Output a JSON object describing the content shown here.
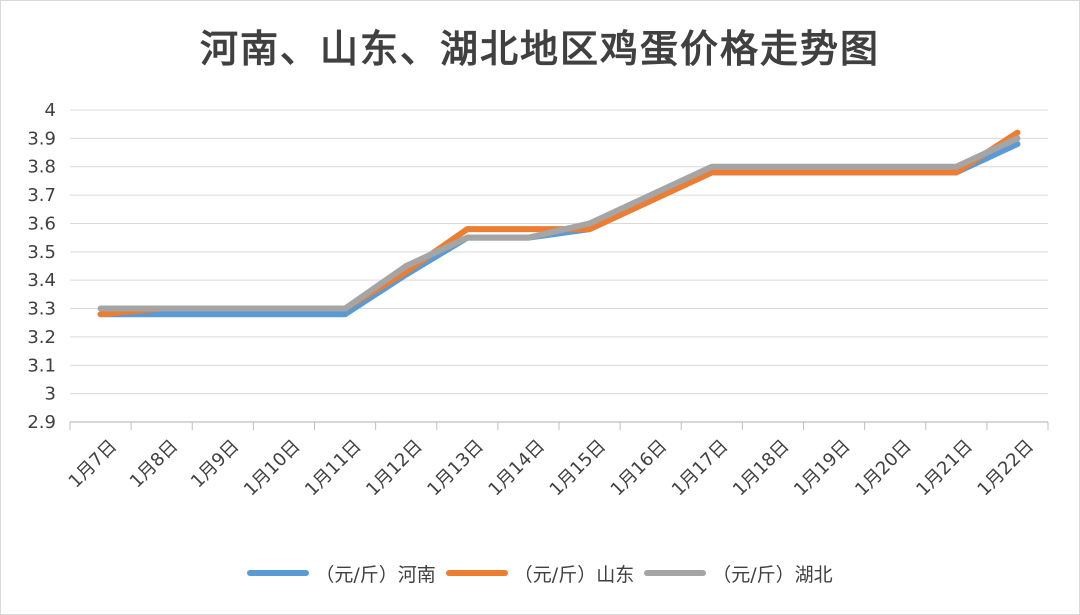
{
  "chart_data": {
    "type": "line",
    "title": "河南、山东、湖北地区鸡蛋价格走势图",
    "categories": [
      "1月7日",
      "1月8日",
      "1月9日",
      "1月10日",
      "1月11日",
      "1月12日",
      "1月13日",
      "1月14日",
      "1月15日",
      "1月16日",
      "1月17日",
      "1月18日",
      "1月19日",
      "1月20日",
      "1月21日",
      "1月22日"
    ],
    "series": [
      {
        "name": "（元/斤）河南",
        "color": "#5b9bd5",
        "values": [
          3.28,
          3.28,
          3.28,
          3.28,
          3.28,
          3.42,
          3.55,
          3.55,
          3.58,
          3.68,
          3.78,
          3.78,
          3.78,
          3.78,
          3.78,
          3.88
        ]
      },
      {
        "name": "（元/斤）山东",
        "color": "#ed7d31",
        "values": [
          3.28,
          3.3,
          3.3,
          3.3,
          3.3,
          3.43,
          3.58,
          3.58,
          3.58,
          3.68,
          3.78,
          3.78,
          3.78,
          3.78,
          3.78,
          3.92
        ]
      },
      {
        "name": "（元/斤）湖北",
        "color": "#a5a5a5",
        "values": [
          3.3,
          3.3,
          3.3,
          3.3,
          3.3,
          3.45,
          3.55,
          3.55,
          3.6,
          3.7,
          3.8,
          3.8,
          3.8,
          3.8,
          3.8,
          3.9
        ]
      }
    ],
    "ylim": [
      2.9,
      4
    ],
    "yticks": [
      "4",
      "3.9",
      "3.8",
      "3.7",
      "3.6",
      "3.5",
      "3.4",
      "3.3",
      "3.2",
      "3.1",
      "3",
      "2.9"
    ],
    "grid": true,
    "legend_position": "bottom"
  }
}
